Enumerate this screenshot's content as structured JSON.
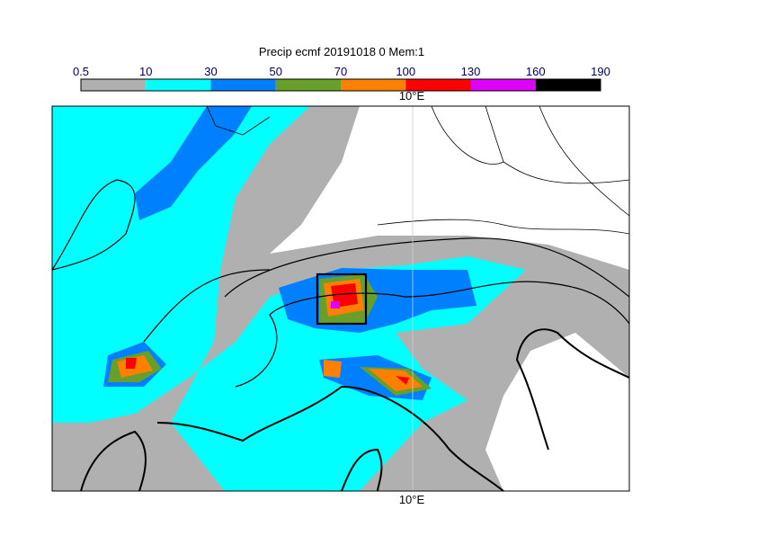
{
  "title": "Precip ecmf 20191018 0 Mem:1",
  "colorbar": {
    "levels": [
      0.5,
      10,
      30,
      50,
      70,
      100,
      130,
      160,
      190
    ],
    "colors": [
      "#b0b0b0",
      "#00ffff",
      "#0080ff",
      "#66a02a",
      "#ff8000",
      "#ff0000",
      "#e000ff",
      "#000000"
    ]
  },
  "map": {
    "top_label": "10°E",
    "bottom_label": "10°E"
  }
}
